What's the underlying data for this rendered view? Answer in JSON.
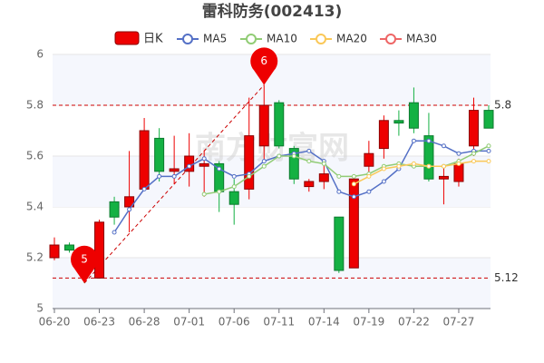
{
  "chart_data": {
    "type": "candlestick",
    "title": "雷科防务(002413)",
    "watermark": "南方财富网",
    "categories": [
      "06-20",
      null,
      null,
      "06-23",
      null,
      null,
      "06-28",
      null,
      null,
      "07-01",
      null,
      null,
      "07-06",
      null,
      null,
      "07-11",
      null,
      null,
      "07-14",
      null,
      null,
      "07-19",
      null,
      null,
      "07-22",
      null,
      null,
      "07-27",
      null,
      null
    ],
    "candles": {
      "name": "日K",
      "up_color": "#ee0000",
      "down_color": "#14b143",
      "open": [
        5.2,
        5.25,
        5.17,
        5.12,
        5.42,
        5.4,
        5.47,
        5.67,
        5.54,
        5.54,
        5.56,
        5.57,
        5.46,
        5.47,
        5.64,
        5.81,
        5.63,
        5.48,
        5.5,
        5.36,
        5.16,
        5.56,
        5.63,
        5.74,
        5.81,
        5.68,
        5.51,
        5.5,
        5.64,
        5.78
      ],
      "close": [
        5.25,
        5.23,
        5.13,
        5.34,
        5.36,
        5.44,
        5.7,
        5.54,
        5.55,
        5.6,
        5.57,
        5.46,
        5.41,
        5.68,
        5.8,
        5.64,
        5.51,
        5.5,
        5.53,
        5.15,
        5.51,
        5.61,
        5.74,
        5.73,
        5.71,
        5.51,
        5.52,
        5.57,
        5.78,
        5.71
      ],
      "high": [
        5.28,
        5.26,
        5.18,
        5.35,
        5.44,
        5.62,
        5.75,
        5.71,
        5.68,
        5.69,
        5.62,
        5.58,
        5.51,
        5.83,
        5.88,
        5.82,
        5.64,
        5.51,
        5.58,
        5.36,
        5.52,
        5.66,
        5.76,
        5.78,
        5.87,
        5.77,
        5.56,
        5.59,
        5.83,
        5.8
      ],
      "low": [
        5.19,
        5.22,
        5.1,
        5.12,
        5.33,
        5.3,
        5.47,
        5.5,
        5.49,
        5.48,
        5.44,
        5.38,
        5.33,
        5.43,
        5.58,
        5.63,
        5.49,
        5.46,
        5.47,
        5.14,
        5.16,
        5.52,
        5.59,
        5.68,
        5.69,
        5.5,
        5.41,
        5.48,
        5.6,
        5.71
      ]
    },
    "series": [
      {
        "name": "MA5",
        "color": "#5470c6",
        "values": [
          null,
          null,
          null,
          null,
          5.3,
          5.39,
          5.47,
          5.52,
          5.52,
          5.56,
          5.59,
          5.55,
          5.52,
          5.53,
          5.58,
          5.6,
          5.61,
          5.62,
          5.58,
          5.46,
          5.44,
          5.46,
          5.5,
          5.55,
          5.66,
          5.66,
          5.64,
          5.61,
          5.62,
          5.62
        ]
      },
      {
        "name": "MA10",
        "color": "#91cc75",
        "values": [
          null,
          null,
          null,
          null,
          null,
          null,
          null,
          null,
          null,
          null,
          5.45,
          5.46,
          5.48,
          5.52,
          5.56,
          5.6,
          5.6,
          5.58,
          5.57,
          5.52,
          5.52,
          5.53,
          5.56,
          5.57,
          5.56,
          5.56,
          5.56,
          5.58,
          5.61,
          5.64
        ]
      },
      {
        "name": "MA20",
        "color": "#fac858",
        "values": [
          null,
          null,
          null,
          null,
          null,
          null,
          null,
          null,
          null,
          null,
          null,
          null,
          null,
          null,
          null,
          null,
          null,
          null,
          null,
          null,
          5.49,
          5.52,
          5.55,
          5.56,
          5.57,
          5.56,
          5.56,
          5.57,
          5.58,
          5.58
        ]
      },
      {
        "name": "MA30",
        "color": "#ee6666",
        "values": [
          null,
          null,
          null,
          null,
          null,
          null,
          null,
          null,
          null,
          null,
          null,
          null,
          null,
          null,
          null,
          null,
          null,
          null,
          null,
          null,
          null,
          null,
          null,
          null,
          null,
          null,
          null,
          null,
          null,
          null
        ]
      }
    ],
    "ylim": [
      5,
      6
    ],
    "yticks": [
      5,
      5.2,
      5.4,
      5.6,
      5.8,
      6
    ],
    "grid": true,
    "reference_lines": [
      {
        "value": 5.8,
        "label": "5.8"
      },
      {
        "value": 5.12,
        "label": "5.12"
      }
    ],
    "max_marker": {
      "index": 14,
      "value": 5.88,
      "label": "6"
    },
    "min_marker": {
      "index": 2,
      "value": 5.1,
      "label": "5"
    }
  }
}
